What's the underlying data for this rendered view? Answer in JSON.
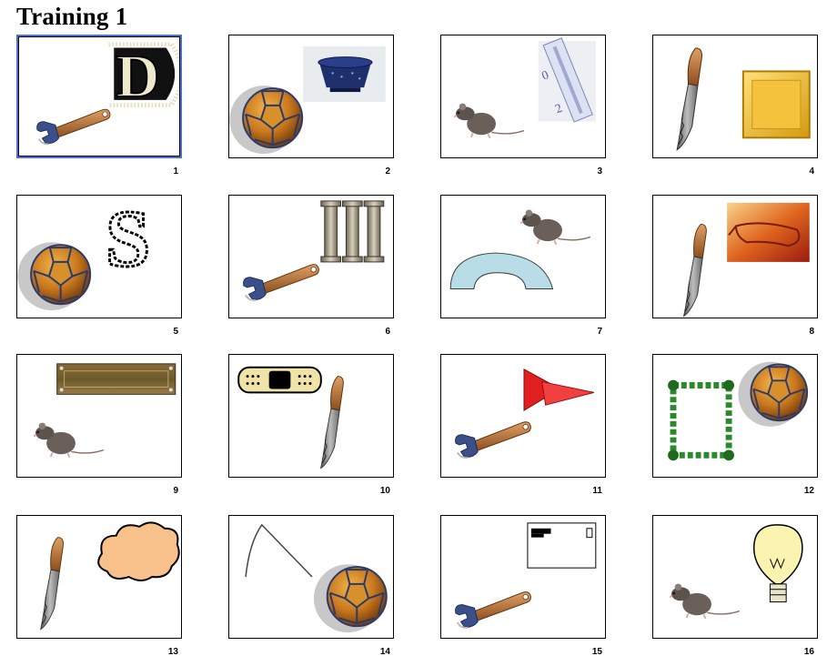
{
  "title": "Training 1",
  "selected_card": "1",
  "cards": [
    {
      "number": "1",
      "letters": "D",
      "objects": [
        "wrench",
        "fringed letter D"
      ]
    },
    {
      "number": "2",
      "letters": "",
      "objects": [
        "soccer ball",
        "colander"
      ]
    },
    {
      "number": "3",
      "letters": "",
      "objects": [
        "rat",
        "thermometer"
      ]
    },
    {
      "number": "4",
      "letters": "",
      "objects": [
        "knife",
        "yellow square"
      ]
    },
    {
      "number": "5",
      "letters": "S",
      "objects": [
        "soccer ball",
        "striped letter S"
      ]
    },
    {
      "number": "6",
      "letters": "III",
      "objects": [
        "wrench",
        "roman numeral III"
      ]
    },
    {
      "number": "7",
      "letters": "",
      "objects": [
        "rat",
        "arch"
      ]
    },
    {
      "number": "8",
      "letters": "",
      "objects": [
        "knife",
        "glasses"
      ]
    },
    {
      "number": "9",
      "letters": "",
      "objects": [
        "rat",
        "plank"
      ]
    },
    {
      "number": "10",
      "letters": "",
      "objects": [
        "knife",
        "bandage"
      ]
    },
    {
      "number": "11",
      "letters": "",
      "objects": [
        "wrench",
        "red triangles"
      ]
    },
    {
      "number": "12",
      "letters": "",
      "objects": [
        "soccer ball",
        "leaf frame"
      ]
    },
    {
      "number": "13",
      "letters": "",
      "objects": [
        "knife",
        "cloud"
      ]
    },
    {
      "number": "14",
      "letters": "",
      "objects": [
        "soccer ball",
        "line angle"
      ]
    },
    {
      "number": "15",
      "letters": "",
      "objects": [
        "wrench",
        "envelope"
      ]
    },
    {
      "number": "16",
      "letters": "",
      "objects": [
        "rat",
        "light bulb"
      ]
    }
  ]
}
